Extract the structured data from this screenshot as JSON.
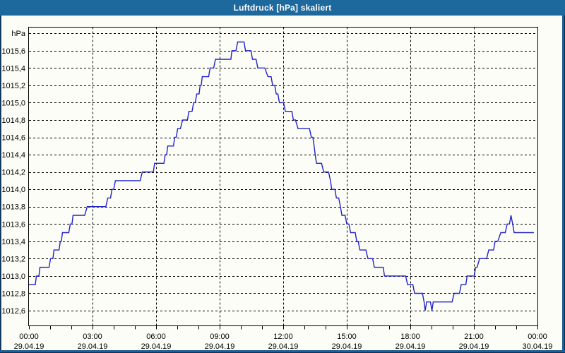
{
  "window": {
    "title": "Luftdruck [hPa] skaliert"
  },
  "colors": {
    "titlebar_bg": "#1d689c",
    "titlebar_text": "#ffffff",
    "window_border": "#1d6092",
    "window_border_dark": "#0e2e55",
    "page_bg": "#fcfdf6",
    "plot_bg": "#fcfdf6",
    "grid": "#000000",
    "frame": "#000000",
    "label_text": "#000000",
    "line": "#2121c8"
  },
  "chart_data": {
    "type": "line",
    "title": "Luftdruck [hPa] skaliert",
    "xlabel": "",
    "ylabel": "hPa",
    "grid": "dashed",
    "legend": "none",
    "x_unit": "hours (00:00 29.04.19 → 00:00 30.04.19)",
    "xlim_hours": [
      0,
      24
    ],
    "ylim": [
      1012.42,
      1015.87
    ],
    "y_unit_label": "hPa",
    "y_ticks": [
      {
        "value": 1015.8,
        "label": "hPa"
      },
      {
        "value": 1015.6,
        "label": "1015,6"
      },
      {
        "value": 1015.4,
        "label": "1015,4"
      },
      {
        "value": 1015.2,
        "label": "1015,2"
      },
      {
        "value": 1015.0,
        "label": "1015,0"
      },
      {
        "value": 1014.8,
        "label": "1014,8"
      },
      {
        "value": 1014.6,
        "label": "1014,6"
      },
      {
        "value": 1014.4,
        "label": "1014,4"
      },
      {
        "value": 1014.2,
        "label": "1014,2"
      },
      {
        "value": 1014.0,
        "label": "1014,0"
      },
      {
        "value": 1013.8,
        "label": "1013,8"
      },
      {
        "value": 1013.6,
        "label": "1013,6"
      },
      {
        "value": 1013.4,
        "label": "1013,4"
      },
      {
        "value": 1013.2,
        "label": "1013,2"
      },
      {
        "value": 1013.0,
        "label": "1013,0"
      },
      {
        "value": 1012.8,
        "label": "1012,8"
      },
      {
        "value": 1012.6,
        "label": "1012,6"
      }
    ],
    "x_ticks": [
      {
        "hour": 0,
        "time": "00:00",
        "date": "29.04.19"
      },
      {
        "hour": 3,
        "time": "03:00",
        "date": "29.04.19"
      },
      {
        "hour": 6,
        "time": "06:00",
        "date": "29.04.19"
      },
      {
        "hour": 9,
        "time": "09:00",
        "date": "29.04.19"
      },
      {
        "hour": 12,
        "time": "12:00",
        "date": "29.04.19"
      },
      {
        "hour": 15,
        "time": "15:00",
        "date": "29.04.19"
      },
      {
        "hour": 18,
        "time": "18:00",
        "date": "29.04.19"
      },
      {
        "hour": 21,
        "time": "21:00",
        "date": "29.04.19"
      },
      {
        "hour": 24,
        "time": "00:00",
        "date": "30.04.19"
      }
    ],
    "x_minor_tick_every_hours": 1,
    "series": [
      {
        "name": "Luftdruck",
        "unit": "hPa",
        "color": "#2121c8",
        "points": [
          [
            0.0,
            1012.9
          ],
          [
            0.3,
            1012.9
          ],
          [
            0.35,
            1013.0
          ],
          [
            0.47,
            1013.0
          ],
          [
            0.52,
            1013.1
          ],
          [
            0.95,
            1013.1
          ],
          [
            1.02,
            1013.2
          ],
          [
            1.13,
            1013.2
          ],
          [
            1.18,
            1013.3
          ],
          [
            1.42,
            1013.3
          ],
          [
            1.48,
            1013.4
          ],
          [
            1.53,
            1013.4
          ],
          [
            1.58,
            1013.5
          ],
          [
            1.88,
            1013.5
          ],
          [
            1.95,
            1013.6
          ],
          [
            2.03,
            1013.6
          ],
          [
            2.08,
            1013.7
          ],
          [
            2.63,
            1013.7
          ],
          [
            2.75,
            1013.8
          ],
          [
            3.63,
            1013.8
          ],
          [
            3.72,
            1013.9
          ],
          [
            3.85,
            1013.9
          ],
          [
            3.92,
            1014.0
          ],
          [
            4.0,
            1014.0
          ],
          [
            4.08,
            1014.1
          ],
          [
            5.25,
            1014.1
          ],
          [
            5.35,
            1014.2
          ],
          [
            5.87,
            1014.2
          ],
          [
            5.93,
            1014.3
          ],
          [
            6.37,
            1014.3
          ],
          [
            6.43,
            1014.4
          ],
          [
            6.5,
            1014.4
          ],
          [
            6.55,
            1014.5
          ],
          [
            6.82,
            1014.5
          ],
          [
            6.88,
            1014.6
          ],
          [
            6.95,
            1014.6
          ],
          [
            7.02,
            1014.7
          ],
          [
            7.15,
            1014.7
          ],
          [
            7.25,
            1014.8
          ],
          [
            7.48,
            1014.8
          ],
          [
            7.55,
            1014.9
          ],
          [
            7.7,
            1014.9
          ],
          [
            7.77,
            1015.0
          ],
          [
            7.85,
            1015.0
          ],
          [
            7.92,
            1015.1
          ],
          [
            8.03,
            1015.1
          ],
          [
            8.08,
            1015.2
          ],
          [
            8.13,
            1015.2
          ],
          [
            8.18,
            1015.3
          ],
          [
            8.48,
            1015.3
          ],
          [
            8.55,
            1015.4
          ],
          [
            8.72,
            1015.4
          ],
          [
            8.8,
            1015.5
          ],
          [
            9.53,
            1015.5
          ],
          [
            9.58,
            1015.6
          ],
          [
            9.77,
            1015.6
          ],
          [
            9.85,
            1015.7
          ],
          [
            10.15,
            1015.7
          ],
          [
            10.22,
            1015.6
          ],
          [
            10.48,
            1015.6
          ],
          [
            10.55,
            1015.5
          ],
          [
            10.72,
            1015.5
          ],
          [
            10.8,
            1015.4
          ],
          [
            11.13,
            1015.4
          ],
          [
            11.28,
            1015.3
          ],
          [
            11.43,
            1015.3
          ],
          [
            11.5,
            1015.2
          ],
          [
            11.6,
            1015.2
          ],
          [
            11.67,
            1015.1
          ],
          [
            11.75,
            1015.1
          ],
          [
            11.82,
            1015.0
          ],
          [
            12.02,
            1015.0
          ],
          [
            12.1,
            1014.9
          ],
          [
            12.41,
            1014.9
          ],
          [
            12.48,
            1014.8
          ],
          [
            12.58,
            1014.8
          ],
          [
            12.7,
            1014.7
          ],
          [
            13.24,
            1014.7
          ],
          [
            13.33,
            1014.6
          ],
          [
            13.4,
            1014.6
          ],
          [
            13.46,
            1014.5
          ],
          [
            13.51,
            1014.4
          ],
          [
            13.57,
            1014.3
          ],
          [
            13.81,
            1014.3
          ],
          [
            13.91,
            1014.2
          ],
          [
            14.14,
            1014.2
          ],
          [
            14.23,
            1014.1
          ],
          [
            14.29,
            1014.0
          ],
          [
            14.44,
            1014.0
          ],
          [
            14.51,
            1013.9
          ],
          [
            14.62,
            1013.9
          ],
          [
            14.7,
            1013.8
          ],
          [
            14.77,
            1013.7
          ],
          [
            14.92,
            1013.7
          ],
          [
            15.0,
            1013.6
          ],
          [
            15.1,
            1013.6
          ],
          [
            15.18,
            1013.5
          ],
          [
            15.4,
            1013.5
          ],
          [
            15.47,
            1013.4
          ],
          [
            15.54,
            1013.4
          ],
          [
            15.62,
            1013.3
          ],
          [
            15.9,
            1013.3
          ],
          [
            16.0,
            1013.2
          ],
          [
            16.22,
            1013.2
          ],
          [
            16.3,
            1013.1
          ],
          [
            16.72,
            1013.1
          ],
          [
            16.78,
            1013.0
          ],
          [
            17.78,
            1013.0
          ],
          [
            17.87,
            1012.9
          ],
          [
            18.12,
            1012.9
          ],
          [
            18.2,
            1012.8
          ],
          [
            18.57,
            1012.8
          ],
          [
            18.65,
            1012.7
          ],
          [
            18.7,
            1012.6
          ],
          [
            18.77,
            1012.7
          ],
          [
            18.95,
            1012.7
          ],
          [
            19.02,
            1012.6
          ],
          [
            19.08,
            1012.7
          ],
          [
            19.97,
            1012.7
          ],
          [
            20.07,
            1012.8
          ],
          [
            20.32,
            1012.8
          ],
          [
            20.4,
            1012.9
          ],
          [
            20.62,
            1012.9
          ],
          [
            20.68,
            1013.0
          ],
          [
            21.02,
            1013.0
          ],
          [
            21.08,
            1013.1
          ],
          [
            21.15,
            1013.1
          ],
          [
            21.27,
            1013.2
          ],
          [
            21.6,
            1013.2
          ],
          [
            21.7,
            1013.3
          ],
          [
            21.93,
            1013.3
          ],
          [
            22.0,
            1013.4
          ],
          [
            22.13,
            1013.4
          ],
          [
            22.27,
            1013.5
          ],
          [
            22.48,
            1013.5
          ],
          [
            22.57,
            1013.6
          ],
          [
            22.68,
            1013.6
          ],
          [
            22.75,
            1013.7
          ],
          [
            22.83,
            1013.6
          ],
          [
            22.9,
            1013.5
          ],
          [
            23.83,
            1013.5
          ]
        ]
      }
    ]
  }
}
